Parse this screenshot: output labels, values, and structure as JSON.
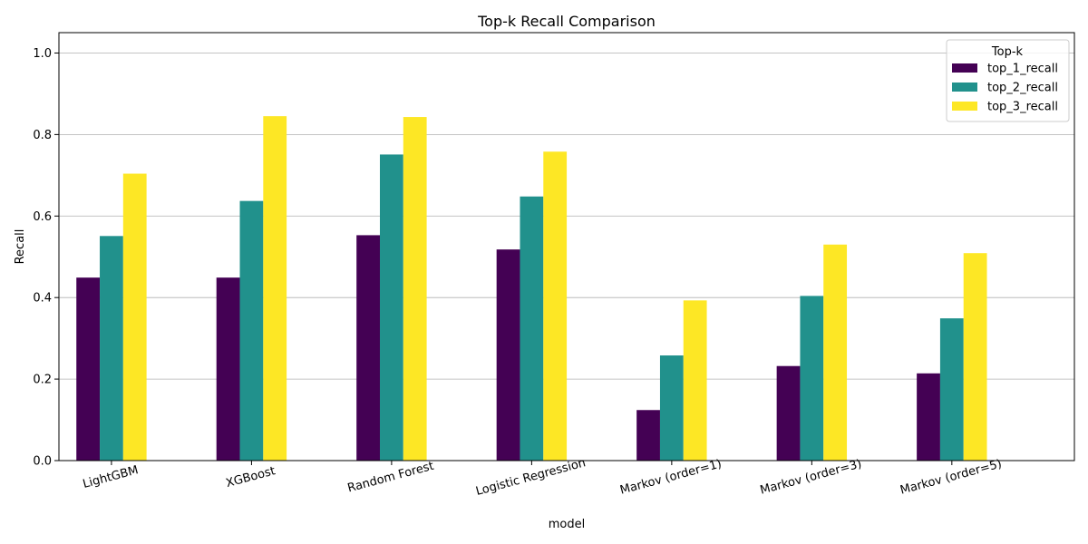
{
  "chart_data": {
    "type": "bar",
    "title": "Top-k Recall Comparison",
    "xlabel": "model",
    "ylabel": "Recall",
    "ylim": [
      0,
      1.05
    ],
    "yticks": [
      0.0,
      0.2,
      0.4,
      0.6,
      0.8,
      1.0
    ],
    "ytick_labels": [
      "0.0",
      "0.2",
      "0.4",
      "0.6",
      "0.8",
      "1.0"
    ],
    "grid": "horizontal",
    "legend_title": "Top-k",
    "legend_position": "top-right",
    "categories": [
      "LightGBM",
      "XGBoost",
      "Random Forest",
      "Logistic Regression",
      "Markov (order=1)",
      "Markov (order=3)",
      "Markov (order=5)"
    ],
    "series": [
      {
        "name": "top_1_recall",
        "color": "#440154",
        "values": [
          0.449,
          0.449,
          0.553,
          0.518,
          0.124,
          0.232,
          0.214
        ]
      },
      {
        "name": "top_2_recall",
        "color": "#21918c",
        "values": [
          0.551,
          0.637,
          0.751,
          0.648,
          0.258,
          0.404,
          0.349
        ]
      },
      {
        "name": "top_3_recall",
        "color": "#fde725",
        "values": [
          0.704,
          0.845,
          0.843,
          0.758,
          0.393,
          0.53,
          0.509
        ]
      }
    ]
  }
}
